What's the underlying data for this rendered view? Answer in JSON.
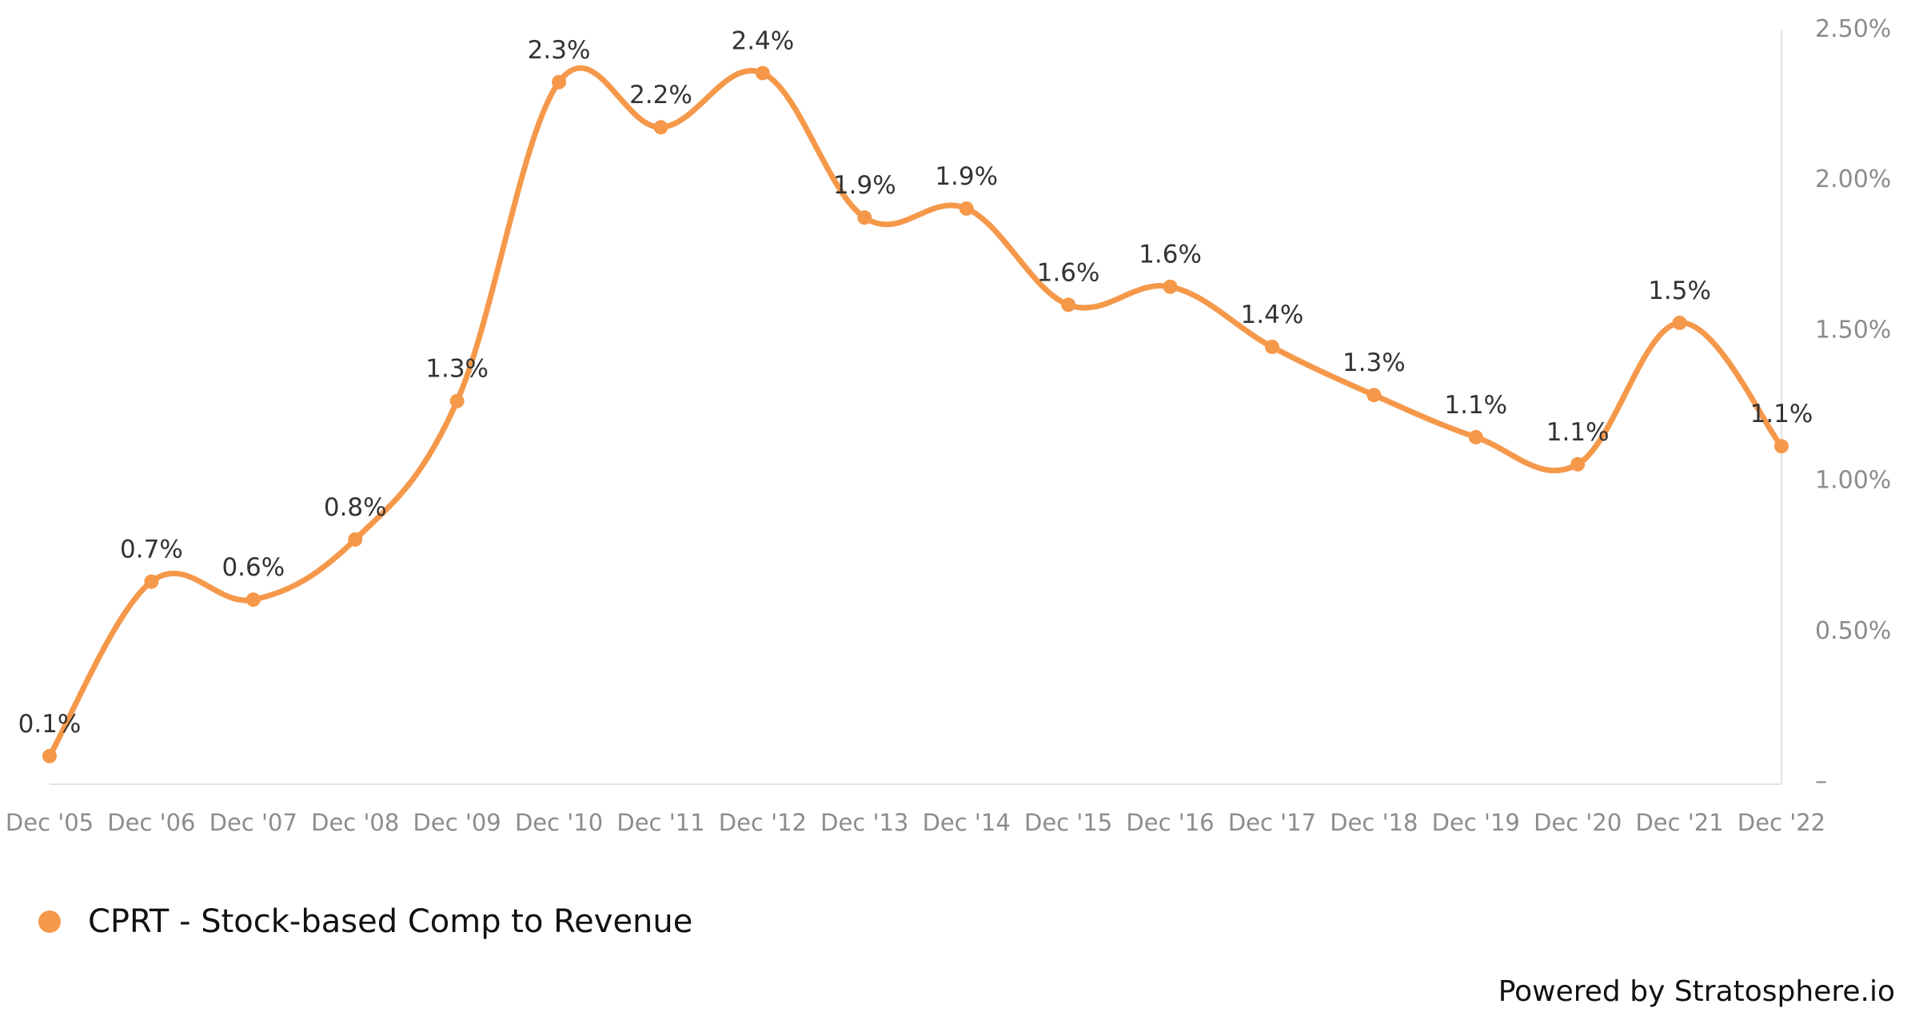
{
  "chart_data": {
    "type": "line",
    "categories": [
      "Dec '05",
      "Dec '06",
      "Dec '07",
      "Dec '08",
      "Dec '09",
      "Dec '10",
      "Dec '11",
      "Dec '12",
      "Dec '13",
      "Dec '14",
      "Dec '15",
      "Dec '16",
      "Dec '17",
      "Dec '18",
      "Dec '19",
      "Dec '20",
      "Dec '21",
      "Dec '22"
    ],
    "series": [
      {
        "name": "CPRT - Stock-based Comp to Revenue",
        "values": [
          0.08,
          0.66,
          0.6,
          0.8,
          1.26,
          2.32,
          2.17,
          2.35,
          1.87,
          1.9,
          1.58,
          1.64,
          1.44,
          1.28,
          1.14,
          1.05,
          1.52,
          1.11
        ],
        "labels": [
          "0.1%",
          "0.7%",
          "0.6%",
          "0.8%",
          "1.3%",
          "2.3%",
          "2.2%",
          "2.4%",
          "1.9%",
          "1.9%",
          "1.6%",
          "1.6%",
          "1.4%",
          "1.3%",
          "1.1%",
          "1.1%",
          "1.5%",
          "1.1%"
        ],
        "color": "#f5984a"
      }
    ],
    "y_ticks": [
      {
        "value": 0,
        "label": "–"
      },
      {
        "value": 0.5,
        "label": "0.50%"
      },
      {
        "value": 1.0,
        "label": "1.00%"
      },
      {
        "value": 1.5,
        "label": "1.50%"
      },
      {
        "value": 2.0,
        "label": "2.00%"
      },
      {
        "value": 2.5,
        "label": "2.50%"
      }
    ],
    "ylim": [
      0,
      2.5
    ],
    "y_axis_side": "right",
    "grid": false,
    "legend_position": "bottom-left"
  },
  "legend": {
    "label": "CPRT - Stock-based Comp to Revenue",
    "color": "#f5984a"
  },
  "credit": "Powered by Stratosphere.io"
}
